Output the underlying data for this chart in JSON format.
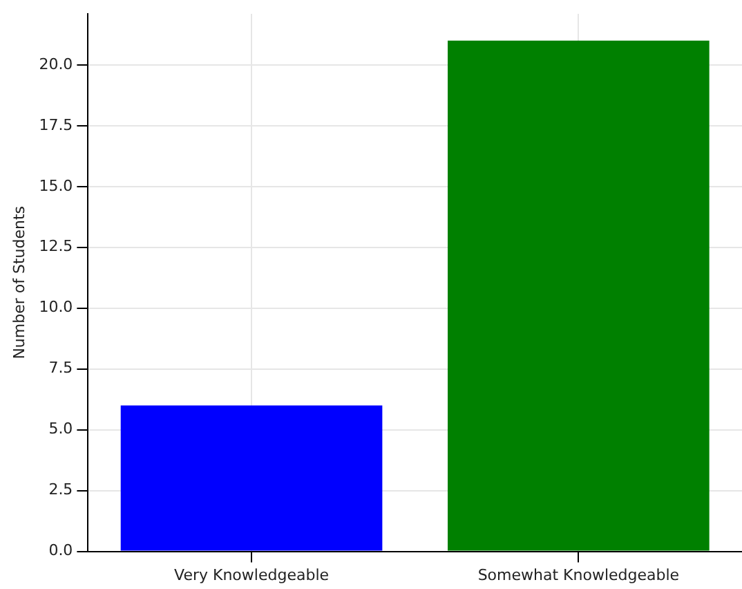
{
  "chart_data": {
    "type": "bar",
    "ylabel": "Number of Students",
    "categories": [
      "Very Knowledgeable",
      "Somewhat Knowledgeable"
    ],
    "values": [
      6,
      21
    ],
    "colors": [
      "#0000ff",
      "#008000"
    ],
    "ylim": [
      0,
      22.1
    ],
    "yticks": [
      {
        "value": 0,
        "label": "0.0"
      },
      2.5,
      {
        "value": 5,
        "label": "5.0"
      },
      7.5,
      {
        "value": 10,
        "label": "10.0"
      },
      12.5,
      {
        "value": 15,
        "label": "15.0"
      },
      17.5,
      {
        "value": 20,
        "label": "20.0"
      }
    ],
    "grid": true
  }
}
